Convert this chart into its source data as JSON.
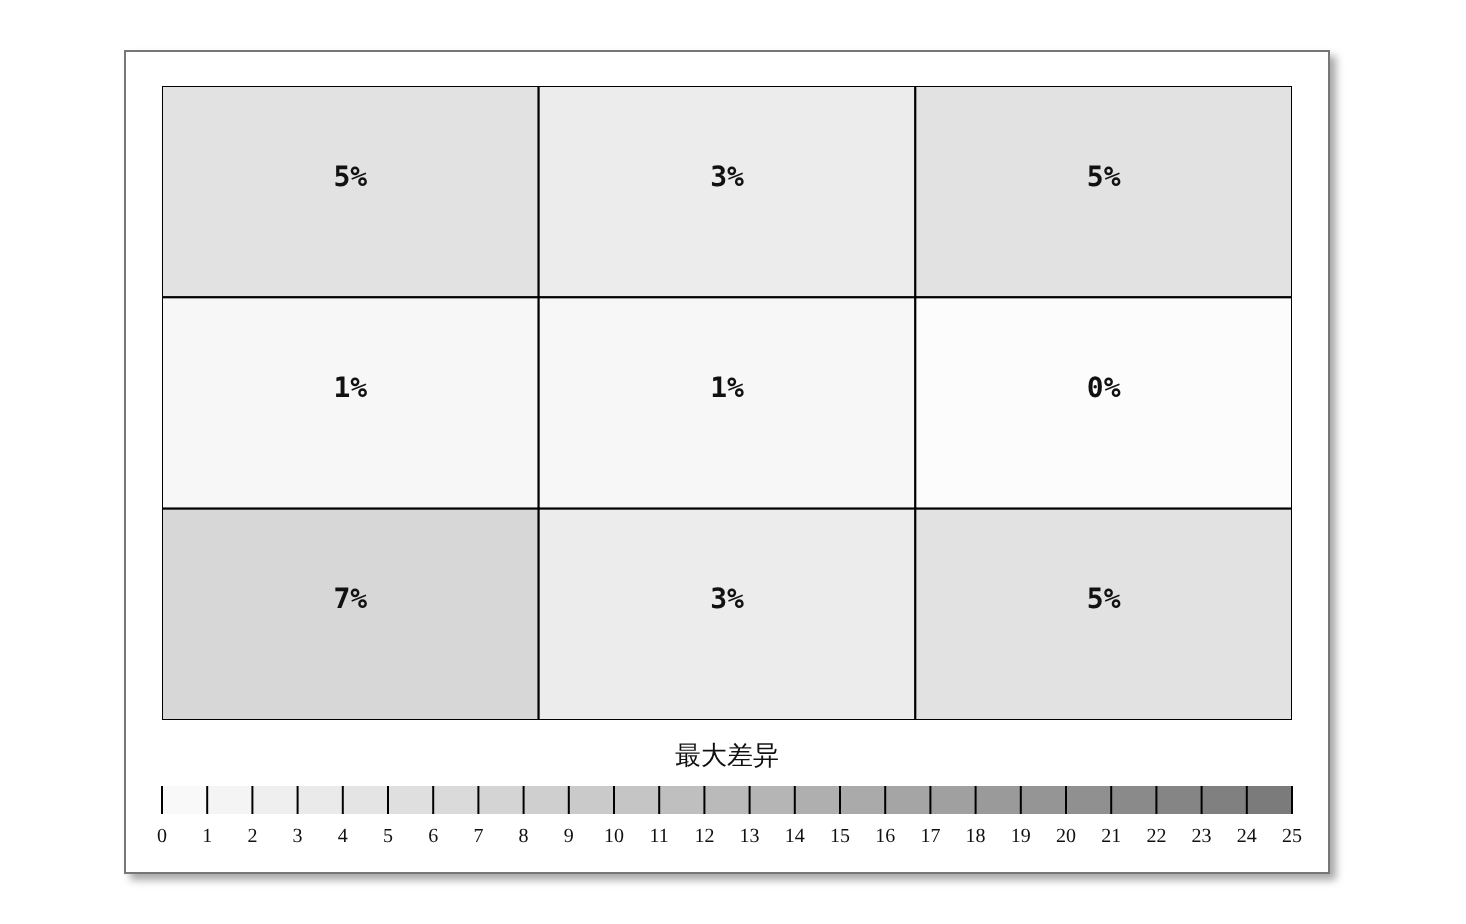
{
  "chart_data": {
    "type": "heatmap",
    "categories": [
      null,
      null,
      null
    ],
    "y_categories": [
      null,
      null,
      null
    ],
    "cells": [
      [
        5,
        3,
        5
      ],
      [
        1,
        1,
        0
      ],
      [
        7,
        3,
        5
      ]
    ],
    "cell_labels": [
      [
        "5%",
        "3%",
        "5%"
      ],
      [
        "1%",
        "1%",
        "0%"
      ],
      [
        "7%",
        "3%",
        "5%"
      ]
    ],
    "clabel": "最大差异",
    "clim": [
      0,
      25
    ],
    "cticks": [
      0,
      1,
      2,
      3,
      4,
      5,
      6,
      7,
      8,
      9,
      10,
      11,
      12,
      13,
      14,
      15,
      16,
      17,
      18,
      19,
      20,
      21,
      22,
      23,
      24,
      25
    ]
  }
}
